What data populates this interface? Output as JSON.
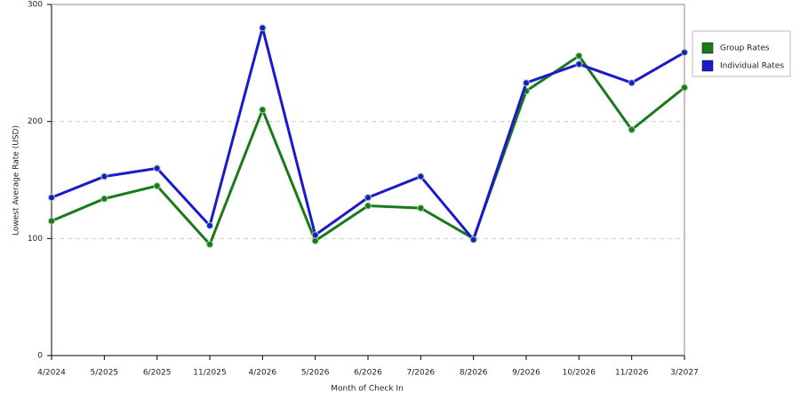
{
  "chart_data": {
    "type": "line",
    "x_label": "Month of Check In",
    "y_label": "Lowest Average Rate (USD)",
    "categories": [
      "4/2024",
      "5/2025",
      "6/2025",
      "11/2025",
      "4/2026",
      "5/2026",
      "6/2026",
      "7/2026",
      "8/2026",
      "9/2026",
      "10/2026",
      "11/2026",
      "3/2027"
    ],
    "series": [
      {
        "name": "Group Rates",
        "color": "#1a7a1a",
        "values": [
          115,
          134,
          145,
          95,
          210,
          98,
          128,
          126,
          100,
          226,
          256,
          193,
          229
        ]
      },
      {
        "name": "Individual Rates",
        "color": "#1a1acc",
        "values": [
          135,
          153,
          160,
          111,
          280,
          103,
          135,
          153,
          99,
          233,
          249,
          233,
          259
        ]
      }
    ],
    "ylim": [
      0,
      300
    ],
    "yticks": [
      0,
      100,
      200,
      300
    ],
    "grid": true,
    "legend": "right"
  }
}
